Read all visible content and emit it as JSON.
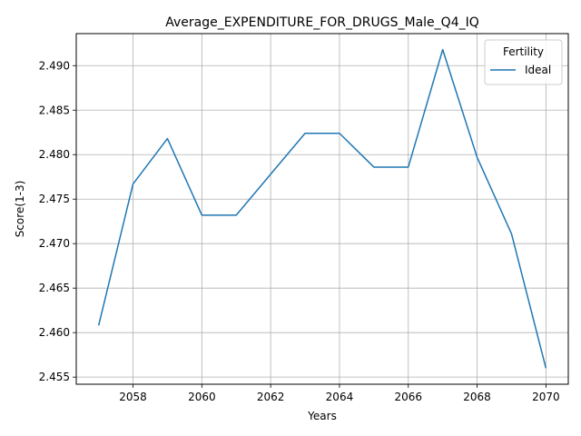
{
  "chart_data": {
    "type": "line",
    "title": "Average_EXPENDITURE_FOR_DRUGS_Male_Q4_IQ",
    "xlabel": "Years",
    "ylabel": "Score(1-3)",
    "x": [
      2057,
      2058,
      2059,
      2060,
      2061,
      2062,
      2063,
      2064,
      2065,
      2066,
      2067,
      2068,
      2069,
      2070
    ],
    "series": [
      {
        "name": "Ideal",
        "color": "#1f77b4",
        "values": [
          2.4608,
          2.4767,
          2.4818,
          2.4732,
          2.4732,
          2.4778,
          2.4824,
          2.4824,
          2.4786,
          2.4786,
          2.4918,
          2.4797,
          2.4711,
          2.456
        ]
      }
    ],
    "xlim": [
      2056.35,
      2070.65
    ],
    "ylim": [
      2.4542,
      2.4936
    ],
    "xticks": [
      2058,
      2060,
      2062,
      2064,
      2066,
      2068,
      2070
    ],
    "yticks": [
      2.455,
      2.46,
      2.465,
      2.47,
      2.475,
      2.48,
      2.485,
      2.49
    ],
    "ytick_labels": [
      "2.455",
      "2.460",
      "2.465",
      "2.470",
      "2.475",
      "2.480",
      "2.485",
      "2.490"
    ],
    "grid": true,
    "legend": {
      "title": "Fertility",
      "placement": "top-right"
    }
  }
}
